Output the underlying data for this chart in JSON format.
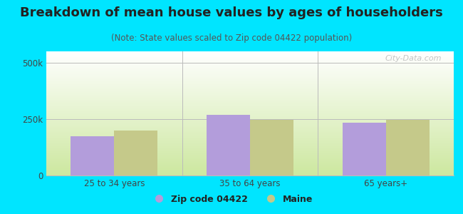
{
  "title": "Breakdown of mean house values by ages of householders",
  "subtitle": "(Note: State values scaled to Zip code 04422 population)",
  "categories": [
    "25 to 34 years",
    "35 to 64 years",
    "65 years+"
  ],
  "zip_values": [
    175000,
    270000,
    235000
  ],
  "state_values": [
    200000,
    248000,
    245000
  ],
  "ylim": [
    0,
    550000
  ],
  "yticks": [
    0,
    250000,
    500000
  ],
  "ytick_labels": [
    "0",
    "250k",
    "500k"
  ],
  "zip_color": "#b39ddb",
  "state_color": "#c5c98a",
  "background_outer": "#00e5ff",
  "grad_top": "#ffffff",
  "grad_bottom": "#cde8a0",
  "legend_zip_label": "Zip code 04422",
  "legend_state_label": "Maine",
  "bar_width": 0.32,
  "title_fontsize": 13,
  "subtitle_fontsize": 8.5,
  "watermark": "City-Data.com"
}
